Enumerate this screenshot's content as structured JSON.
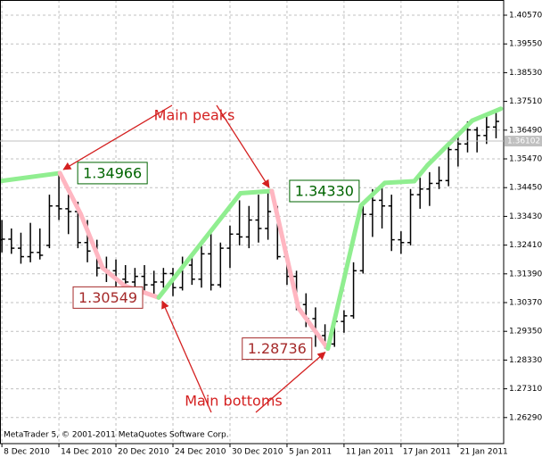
{
  "chart_data": {
    "type": "ohlc",
    "xlim": [
      -0.2,
      52.8
    ],
    "ylim": [
      1.25365,
      1.41109
    ],
    "xticks": [
      {
        "value": 0,
        "label": "8 Dec 2010"
      },
      {
        "value": 6,
        "label": "14 Dec 2010"
      },
      {
        "value": 12,
        "label": "20 Dec 2010"
      },
      {
        "value": 18,
        "label": "24 Dec 2010"
      },
      {
        "value": 24,
        "label": "30 Dec 2010"
      },
      {
        "value": 30,
        "label": "5 Jan 2011"
      },
      {
        "value": 36,
        "label": "11 Jan 2011"
      },
      {
        "value": 42,
        "label": "17 Jan 2011"
      },
      {
        "value": 48,
        "label": "21 Jan 2011"
      }
    ],
    "yticks": [
      {
        "value": 1.4057,
        "label": "1.40570"
      },
      {
        "value": 1.3955,
        "label": "1.39550"
      },
      {
        "value": 1.3853,
        "label": "1.38530"
      },
      {
        "value": 1.3751,
        "label": "1.37510"
      },
      {
        "value": 1.3649,
        "label": "1.36490"
      },
      {
        "value": 1.3547,
        "label": "1.35470"
      },
      {
        "value": 1.3445,
        "label": "1.34450"
      },
      {
        "value": 1.3343,
        "label": "1.33430"
      },
      {
        "value": 1.3241,
        "label": "1.32410"
      },
      {
        "value": 1.3139,
        "label": "1.31390"
      },
      {
        "value": 1.3037,
        "label": "1.30370"
      },
      {
        "value": 1.2935,
        "label": "1.29350"
      },
      {
        "value": 1.2833,
        "label": "1.28330"
      },
      {
        "value": 1.2731,
        "label": "1.27310"
      },
      {
        "value": 1.2629,
        "label": "1.26290"
      }
    ],
    "grid": true,
    "bar_color": "#000000",
    "bars": [
      [
        1.326,
        1.333,
        1.3215,
        1.3262
      ],
      [
        1.3262,
        1.33,
        1.321,
        1.323
      ],
      [
        1.323,
        1.3285,
        1.3175,
        1.32
      ],
      [
        1.32,
        1.332,
        1.318,
        1.3215
      ],
      [
        1.3215,
        1.33,
        1.319,
        1.3205
      ],
      [
        1.324,
        1.342,
        1.323,
        1.338
      ],
      [
        1.338,
        1.3497,
        1.333,
        1.337
      ],
      [
        1.337,
        1.342,
        1.328,
        1.336
      ],
      [
        1.336,
        1.3395,
        1.323,
        1.325
      ],
      [
        1.325,
        1.333,
        1.318,
        1.322
      ],
      [
        1.322,
        1.326,
        1.313,
        1.316
      ],
      [
        1.316,
        1.32,
        1.311,
        1.315
      ],
      [
        1.315,
        1.319,
        1.308,
        1.312
      ],
      [
        1.312,
        1.317,
        1.307,
        1.311
      ],
      [
        1.311,
        1.316,
        1.308,
        1.313
      ],
      [
        1.313,
        1.317,
        1.3075,
        1.31
      ],
      [
        1.31,
        1.315,
        1.3055,
        1.311
      ],
      [
        1.311,
        1.316,
        1.309,
        1.314
      ],
      [
        1.314,
        1.316,
        1.306,
        1.309
      ],
      [
        1.309,
        1.32,
        1.308,
        1.317
      ],
      [
        1.317,
        1.321,
        1.31,
        1.312
      ],
      [
        1.312,
        1.324,
        1.309,
        1.321
      ],
      [
        1.321,
        1.33,
        1.308,
        1.31
      ],
      [
        1.31,
        1.325,
        1.309,
        1.323
      ],
      [
        1.323,
        1.331,
        1.316,
        1.328
      ],
      [
        1.328,
        1.34,
        1.324,
        1.327
      ],
      [
        1.327,
        1.338,
        1.323,
        1.333
      ],
      [
        1.333,
        1.342,
        1.325,
        1.33
      ],
      [
        1.33,
        1.3433,
        1.326,
        1.336
      ],
      [
        1.336,
        1.338,
        1.319,
        1.32
      ],
      [
        1.32,
        1.322,
        1.31,
        1.313
      ],
      [
        1.313,
        1.315,
        1.301,
        1.303
      ],
      [
        1.303,
        1.307,
        1.295,
        1.298
      ],
      [
        1.298,
        1.302,
        1.288,
        1.292
      ],
      [
        1.292,
        1.296,
        1.2874,
        1.289
      ],
      [
        1.289,
        1.299,
        1.288,
        1.297
      ],
      [
        1.297,
        1.301,
        1.293,
        1.299
      ],
      [
        1.299,
        1.318,
        1.298,
        1.315
      ],
      [
        1.315,
        1.338,
        1.314,
        1.335
      ],
      [
        1.335,
        1.344,
        1.327,
        1.34
      ],
      [
        1.34,
        1.345,
        1.33,
        1.338
      ],
      [
        1.338,
        1.342,
        1.322,
        1.326
      ],
      [
        1.326,
        1.329,
        1.321,
        1.325
      ],
      [
        1.325,
        1.344,
        1.324,
        1.342
      ],
      [
        1.342,
        1.348,
        1.337,
        1.344
      ],
      [
        1.344,
        1.35,
        1.338,
        1.346
      ],
      [
        1.346,
        1.352,
        1.344,
        1.347
      ],
      [
        1.347,
        1.36,
        1.345,
        1.358
      ],
      [
        1.358,
        1.364,
        1.352,
        1.36
      ],
      [
        1.36,
        1.368,
        1.357,
        1.365
      ],
      [
        1.365,
        1.366,
        1.357,
        1.363
      ],
      [
        1.363,
        1.37,
        1.36,
        1.366
      ],
      [
        1.366,
        1.371,
        1.362,
        1.368
      ]
    ],
    "zigzag": {
      "x": [
        -0.2,
        6.1,
        8.3,
        10.6,
        12.9,
        16.5,
        25.1,
        28.4,
        31.2,
        34.3,
        37.8,
        40.3,
        43.4,
        44.8,
        49.5,
        52.5
      ],
      "values": [
        1.3468,
        1.34966,
        1.3351,
        1.316,
        1.3097,
        1.30549,
        1.3425,
        1.3433,
        1.3018,
        1.28736,
        1.3382,
        1.3462,
        1.3468,
        1.3525,
        1.3683,
        1.3725
      ],
      "value_labels": [
        null,
        "1.34966",
        null,
        null,
        null,
        "1.30549",
        null,
        "1.34330",
        null,
        "1.28736",
        null,
        null,
        null,
        null,
        null,
        null
      ],
      "up_color": "#90ee90",
      "down_color": "#ffb6c1",
      "peak_label_color": "#006400",
      "bottom_label_color": "#a52a2a"
    },
    "current_price": 1.36102,
    "annotations": [
      "Main peaks",
      "Main bottoms"
    ],
    "annotation_color": "#d42020",
    "copyright": "MetaTrader 5, © 2001-2011 MetaQuotes Software Corp."
  }
}
